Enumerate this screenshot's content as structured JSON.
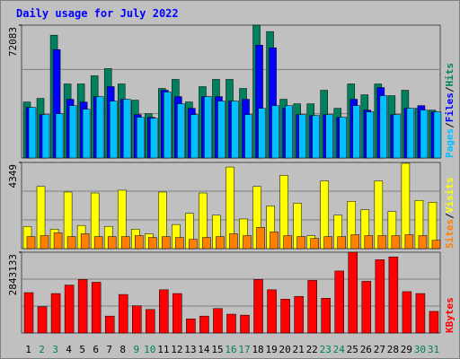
{
  "legend_separator": "/",
  "chart_data": [
    {
      "type": "bar",
      "title": "Daily usage for July 2022",
      "ylim": [
        0,
        72083
      ],
      "yticks": [
        72083
      ],
      "series": [
        {
          "name": "Hits",
          "color": "#00805c",
          "values": [
            30380,
            32340,
            66640,
            40180,
            40180,
            44590,
            48510,
            40180,
            31360,
            24010,
            37730,
            42630,
            30380,
            38710,
            42630,
            42630,
            37730,
            72083,
            68600,
            31850,
            29400,
            29400,
            36750,
            26950,
            40180,
            34300,
            40180,
            33810,
            36750,
            26950,
            25970
          ]
        },
        {
          "name": "Files",
          "color": "#0000ff",
          "values": [
            27440,
            23520,
            58800,
            31850,
            30380,
            33320,
            38710,
            31850,
            23520,
            22050,
            36750,
            33320,
            26950,
            33320,
            33320,
            30870,
            31850,
            61250,
            59780,
            26950,
            23520,
            23030,
            23520,
            22050,
            31850,
            25970,
            38220,
            23520,
            26950,
            28420,
            24990
          ]
        },
        {
          "name": "Pages",
          "color": "#00c0ff",
          "values": [
            27440,
            23520,
            24010,
            28420,
            26460,
            33320,
            30870,
            31850,
            22050,
            21560,
            35770,
            29400,
            23520,
            33320,
            30870,
            30870,
            23520,
            26950,
            28420,
            28420,
            23520,
            23030,
            23520,
            22050,
            28420,
            24990,
            33810,
            23520,
            26950,
            25970,
            24990
          ]
        }
      ]
    },
    {
      "type": "bar",
      "ylim": [
        0,
        4349
      ],
      "yticks": [
        4349
      ],
      "series": [
        {
          "name": "Visits",
          "color": "#ffff00",
          "values": [
            1123,
            3136,
            983,
            2855,
            1170,
            2808,
            1123,
            2948,
            983,
            749,
            2855,
            1217,
            1778,
            2808,
            1685,
            4118,
            1498,
            3136,
            2153,
            3697,
            2293,
            655,
            3416,
            1685,
            2387,
            1966,
            3416,
            1872,
            4306,
            2434,
            2340
          ]
        },
        {
          "name": "Sites",
          "color": "#ff8000",
          "values": [
            608,
            655,
            796,
            608,
            749,
            608,
            608,
            608,
            655,
            562,
            608,
            562,
            468,
            562,
            608,
            749,
            655,
            1076,
            842,
            655,
            608,
            515,
            608,
            608,
            702,
            655,
            655,
            655,
            702,
            655,
            421
          ]
        }
      ]
    },
    {
      "type": "bar",
      "ylim": [
        0,
        2843133
      ],
      "yticks": [
        2843133
      ],
      "series": [
        {
          "name": "KBytes",
          "color": "#ff0000",
          "values": [
            1421580,
            925680,
            1388520,
            1686060,
            1884420,
            1785240,
            595080,
            1355460,
            958740,
            826500,
            1520760,
            1388520,
            495900,
            595080,
            859560,
            661200,
            628140,
            1884420,
            1520760,
            1190160,
            1289340,
            1851360,
            1223220,
            2181960,
            2843133,
            1818300,
            2578680,
            2677860,
            1454640,
            1388520,
            760380
          ]
        }
      ],
      "categories": [
        1,
        2,
        3,
        4,
        5,
        6,
        7,
        8,
        9,
        10,
        11,
        12,
        13,
        14,
        15,
        16,
        17,
        18,
        19,
        20,
        21,
        22,
        23,
        24,
        25,
        26,
        27,
        28,
        29,
        30,
        31
      ],
      "category_colors": [
        "#000000",
        "#00805c",
        "#00805c",
        "#000000",
        "#000000",
        "#000000",
        "#000000",
        "#000000",
        "#00805c",
        "#00805c",
        "#000000",
        "#000000",
        "#000000",
        "#000000",
        "#000000",
        "#00805c",
        "#00805c",
        "#000000",
        "#000000",
        "#000000",
        "#000000",
        "#000000",
        "#00805c",
        "#00805c",
        "#000000",
        "#000000",
        "#000000",
        "#000000",
        "#000000",
        "#00805c",
        "#00805c"
      ]
    }
  ]
}
